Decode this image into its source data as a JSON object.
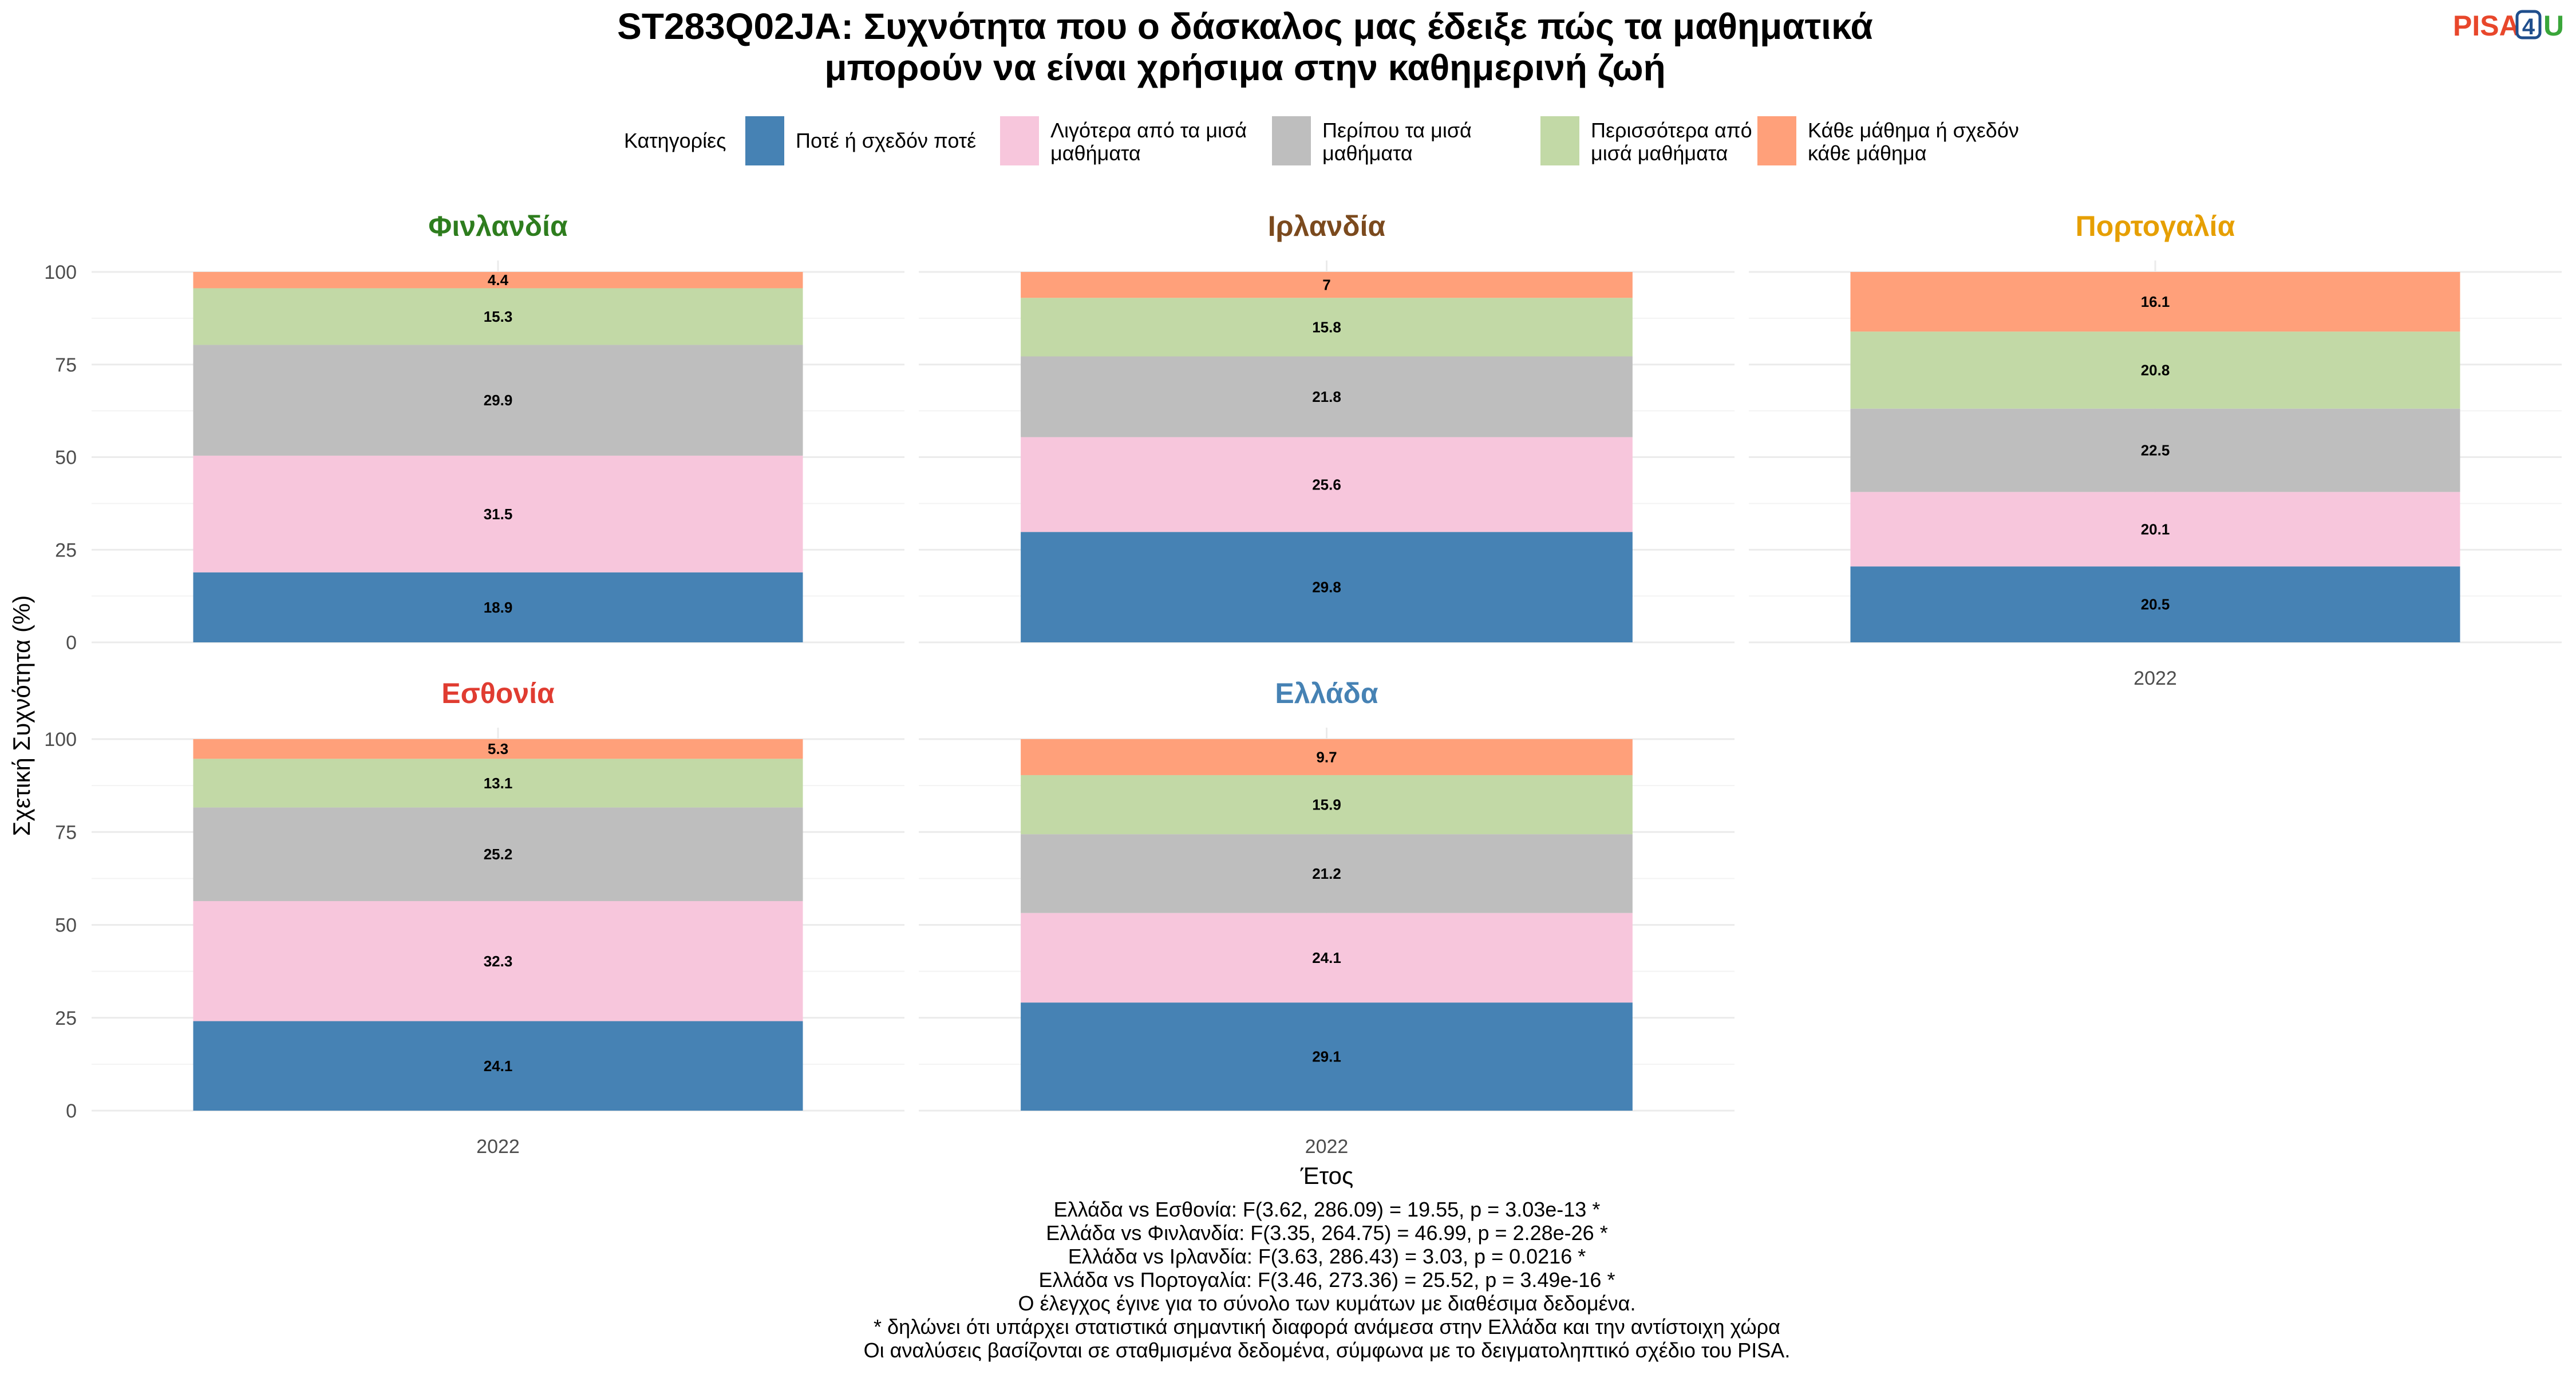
{
  "title_lines": [
    "ST283Q02JA: Συχνότητα που ο δάσκαλος μας έδειξε πώς τα μαθηματικά",
    "μπορούν να είναι χρήσιμα στην καθημερινή ζωή"
  ],
  "logo": {
    "part1": "PISA",
    "digit": "4",
    "part2": "U"
  },
  "legend": {
    "title": "Κατηγορίες",
    "items": [
      {
        "lines": [
          "Ποτέ ή σχεδόν ποτέ"
        ],
        "color": "#4682b4"
      },
      {
        "lines": [
          "Λιγότερα από τα μισά",
          "μαθήματα"
        ],
        "color": "#f7c6dc"
      },
      {
        "lines": [
          "Περίπου τα μισά",
          "μαθήματα"
        ],
        "color": "#bebebe"
      },
      {
        "lines": [
          "Περισσότερα από τα",
          "μισά μαθήματα"
        ],
        "color": "#c2d9a6"
      },
      {
        "lines": [
          "Κάθε μάθημα ή σχεδόν",
          "κάθε μάθημα"
        ],
        "color": "#ffa07a"
      }
    ]
  },
  "chart_data": {
    "type": "bar",
    "stacked": true,
    "ylabel": "Σχετική Συχνότητα (%)",
    "xlabel": "Έτος",
    "ylim": [
      0,
      100
    ],
    "yticks": [
      0,
      25,
      50,
      75,
      100
    ],
    "categories": [
      "2022"
    ],
    "series_names": [
      "Ποτέ ή σχεδόν ποτέ",
      "Λιγότερα από τα μισά μαθήματα",
      "Περίπου τα μισά μαθήματα",
      "Περισσότερα από τα μισά μαθήματα",
      "Κάθε μάθημα ή σχεδόν κάθε μάθημα"
    ],
    "facets": [
      {
        "name": "Φινλανδία",
        "color": "#2e7d1e",
        "values": [
          18.9,
          31.5,
          29.9,
          15.3,
          4.4
        ],
        "labels": [
          "18.9",
          "31.5",
          "29.9",
          "15.3",
          "4.4"
        ]
      },
      {
        "name": "Ιρλανδία",
        "color": "#7b4a1e",
        "values": [
          29.8,
          25.6,
          21.8,
          15.8,
          7.0
        ],
        "labels": [
          "29.8",
          "25.6",
          "21.8",
          "15.8",
          "7"
        ]
      },
      {
        "name": "Πορτογαλία",
        "color": "#e69f00",
        "values": [
          20.5,
          20.1,
          22.5,
          20.8,
          16.1
        ],
        "labels": [
          "20.5",
          "20.1",
          "22.5",
          "20.8",
          "16.1"
        ]
      },
      {
        "name": "Εσθονία",
        "color": "#e03c31",
        "values": [
          24.1,
          32.3,
          25.2,
          13.1,
          5.3
        ],
        "labels": [
          "24.1",
          "32.3",
          "25.2",
          "13.1",
          "5.3"
        ]
      },
      {
        "name": "Ελλάδα",
        "color": "#4682b4",
        "values": [
          29.1,
          24.1,
          21.2,
          15.9,
          9.7
        ],
        "labels": [
          "29.1",
          "24.1",
          "21.2",
          "15.9",
          "9.7"
        ]
      }
    ]
  },
  "caption_lines": [
    "Ελλάδα vs Εσθονία: F(3.62, 286.09) = 19.55, p = 3.03e-13 *",
    "Ελλάδα vs Φινλανδία: F(3.35, 264.75) = 46.99, p = 2.28e-26 *",
    "Ελλάδα vs Ιρλανδία: F(3.63, 286.43) = 3.03, p = 0.0216 *",
    "Ελλάδα vs Πορτογαλία: F(3.46, 273.36) = 25.52, p = 3.49e-16 *",
    "Ο έλεγχος έγινε για το σύνολο των κυμάτων με διαθέσιμα δεδομένα.",
    "* δηλώνει ότι υπάρχει στατιστικά σημαντική διαφορά ανάμεσα στην Ελλάδα και την αντίστοιχη χώρα",
    "Οι αναλύσεις βασίζονται σε σταθμισμένα δεδομένα, σύμφωνα με το δειγματοληπτικό σχέδιο του PISA."
  ]
}
